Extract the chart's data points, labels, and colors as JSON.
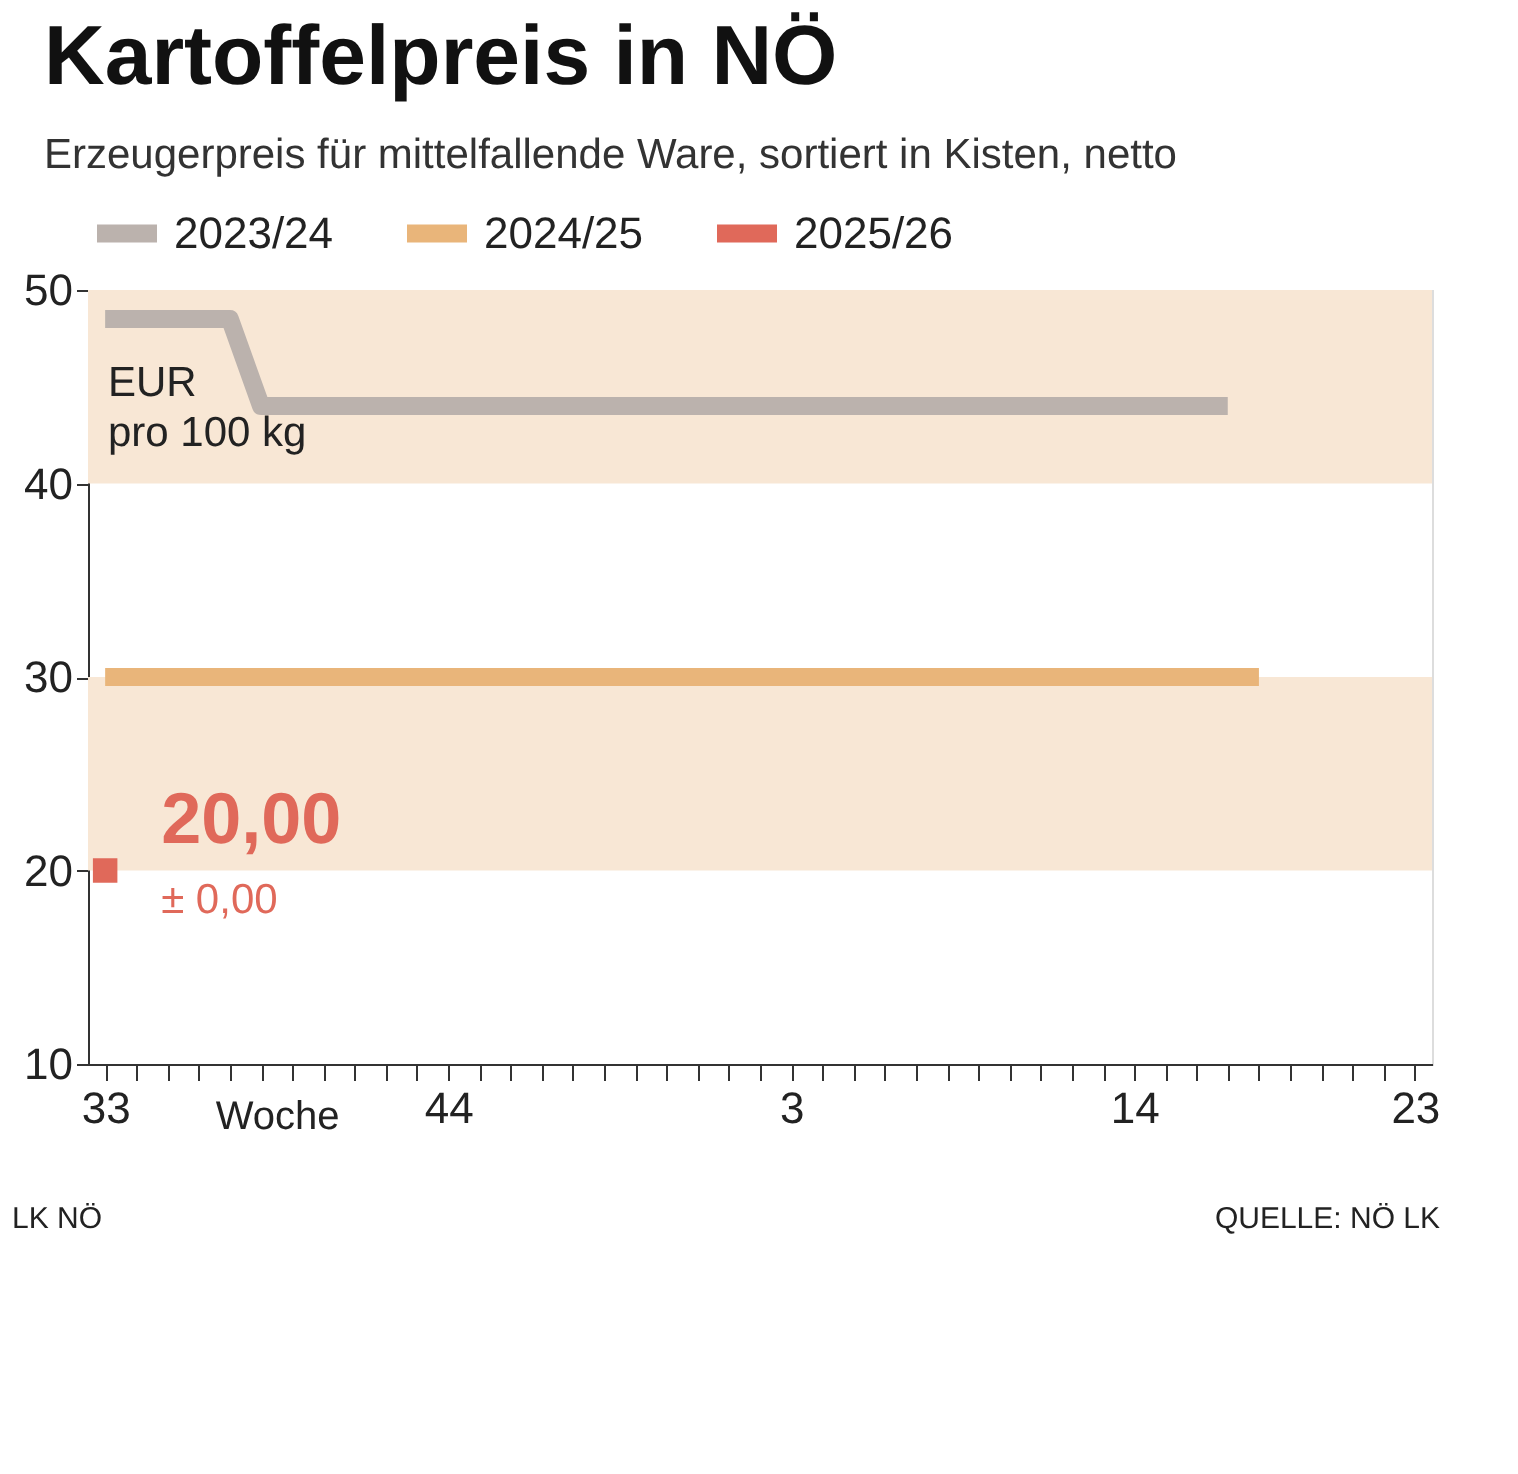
{
  "chart_data": {
    "type": "line",
    "title": "Kartoffelpreis in NÖ",
    "subtitle": "Erzeugerpreis für mittelfallende Ware, sortiert in Kisten, netto",
    "ylabel": "EUR pro 100 kg",
    "xlabel": "Woche",
    "categories": [
      "33",
      null,
      null,
      null,
      null,
      null,
      null,
      null,
      null,
      null,
      null,
      "44",
      null,
      null,
      null,
      null,
      null,
      null,
      null,
      null,
      null,
      null,
      "3",
      null,
      null,
      null,
      null,
      null,
      null,
      null,
      null,
      null,
      null,
      "14",
      null,
      null,
      null,
      null,
      null,
      null,
      null,
      null,
      "23"
    ],
    "ylim": [
      10,
      50
    ],
    "yticks": [
      10,
      20,
      30,
      40,
      50
    ],
    "grid": false,
    "legend": "top left",
    "line_style": "solid",
    "marker": "none",
    "series": [
      {
        "name": "2023/24",
        "color": "#bbb2ad",
        "values": [
          48.5,
          48.5,
          48.5,
          48.5,
          48.5,
          44,
          44,
          44,
          44,
          44,
          44,
          44,
          44,
          44,
          44,
          44,
          44,
          44,
          44,
          44,
          44,
          44,
          44,
          44,
          44,
          44,
          44,
          44,
          44,
          44,
          44,
          44,
          44,
          44,
          44,
          44,
          44,
          null,
          null,
          null,
          null,
          null,
          null
        ]
      },
      {
        "name": "2024/25",
        "color": "#e9b57a",
        "values": [
          30,
          30,
          30,
          30,
          30,
          30,
          30,
          30,
          30,
          30,
          30,
          30,
          30,
          30,
          30,
          30,
          30,
          30,
          30,
          30,
          30,
          30,
          30,
          30,
          30,
          30,
          30,
          30,
          30,
          30,
          30,
          30,
          30,
          30,
          30,
          30,
          30,
          30,
          null,
          null,
          null,
          null,
          null
        ]
      },
      {
        "name": "2025/26",
        "color": "#e0695a",
        "marker": "square",
        "values": [
          20,
          null,
          null,
          null,
          null,
          null,
          null,
          null,
          null,
          null,
          null,
          null,
          null,
          null,
          null,
          null,
          null,
          null,
          null,
          null,
          null,
          null,
          null,
          null,
          null,
          null,
          null,
          null,
          null,
          null,
          null,
          null,
          null,
          null,
          null,
          null,
          null,
          null,
          null,
          null,
          null,
          null,
          null
        ]
      }
    ],
    "bands": [
      {
        "axis": "y",
        "from": 40,
        "to": 50,
        "label": null,
        "color": "#f8e7d5"
      },
      {
        "axis": "y",
        "from": 20,
        "to": 30,
        "label": null,
        "color": "#f8e7d5"
      }
    ],
    "annotations": [
      "20,00",
      "± 0,00",
      "LK NÖ",
      "QUELLE: NÖ LK"
    ]
  }
}
